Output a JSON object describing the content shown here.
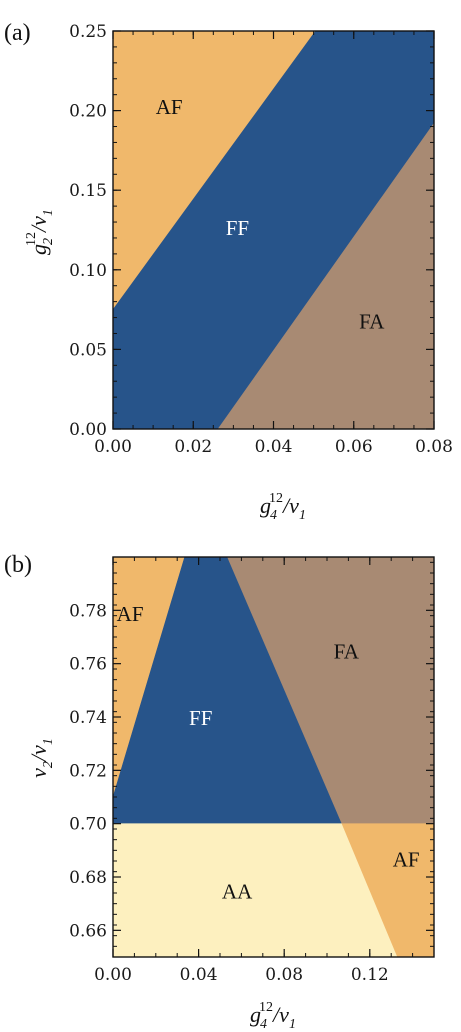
{
  "chart_data": [
    {
      "type": "phase-diagram",
      "panel_label": "(a)",
      "xlabel": "g_4^{12}/v_1",
      "ylabel": "g_2^{12}/v_1",
      "xlim": [
        0,
        0.08
      ],
      "ylim": [
        0,
        0.25
      ],
      "xticks": [
        0.0,
        0.02,
        0.04,
        0.06,
        0.08
      ],
      "xtick_labels": [
        "0.00",
        "0.02",
        "0.04",
        "0.06",
        "0.08"
      ],
      "yticks": [
        0.0,
        0.05,
        0.1,
        0.15,
        0.2,
        0.25
      ],
      "ytick_labels": [
        "0.00",
        "0.05",
        "0.10",
        "0.15",
        "0.20",
        "0.25"
      ],
      "regions": [
        {
          "label": "AF",
          "color": "#f0b86b",
          "label_at": [
            0.014,
            0.198
          ],
          "label_color": "#111111",
          "polygon": [
            [
              0,
              0.075
            ],
            [
              0.0505,
              0.25
            ],
            [
              0,
              0.25
            ]
          ]
        },
        {
          "label": "FF",
          "color": "#27548a",
          "label_at": [
            0.031,
            0.122
          ],
          "label_color": "#ffffff",
          "polygon": [
            [
              0,
              0
            ],
            [
              0.0262,
              0
            ],
            [
              0.08,
              0.192
            ],
            [
              0.08,
              0.25
            ],
            [
              0.0505,
              0.25
            ],
            [
              0,
              0.075
            ]
          ]
        },
        {
          "label": "FA",
          "color": "#a88a73",
          "label_at": [
            0.0645,
            0.063
          ],
          "label_color": "#111111",
          "polygon": [
            [
              0.0262,
              0
            ],
            [
              0.08,
              0
            ],
            [
              0.08,
              0.192
            ]
          ]
        }
      ]
    },
    {
      "type": "phase-diagram",
      "panel_label": "(b)",
      "xlabel": "g_4^{12}/v_1",
      "ylabel": "v_2/v_1",
      "xlim": [
        0,
        0.15
      ],
      "ylim": [
        0.65,
        0.8
      ],
      "xticks": [
        0.0,
        0.04,
        0.08,
        0.12
      ],
      "xtick_labels": [
        "0.00",
        "0.04",
        "0.08",
        "0.12"
      ],
      "yticks": [
        0.66,
        0.68,
        0.7,
        0.72,
        0.74,
        0.76,
        0.78
      ],
      "ytick_labels": [
        "0.66",
        "0.68",
        "0.70",
        "0.72",
        "0.74",
        "0.76",
        "0.78"
      ],
      "regions": [
        {
          "label": "AF",
          "color": "#f0b86b",
          "label_at": [
            0.008,
            0.776
          ],
          "label_color": "#111111",
          "polygon": [
            [
              0,
              0.71
            ],
            [
              0.0335,
              0.8
            ],
            [
              0,
              0.8
            ]
          ]
        },
        {
          "label": "FF",
          "color": "#27548a",
          "label_at": [
            0.041,
            0.737
          ],
          "label_color": "#ffffff",
          "polygon": [
            [
              0,
              0.7
            ],
            [
              0.107,
              0.7
            ],
            [
              0.0535,
              0.8
            ],
            [
              0.0335,
              0.8
            ],
            [
              0,
              0.71
            ]
          ]
        },
        {
          "label": "FA",
          "color": "#a88a73",
          "label_at": [
            0.109,
            0.762
          ],
          "label_color": "#111111",
          "polygon": [
            [
              0.0535,
              0.8
            ],
            [
              0.15,
              0.8
            ],
            [
              0.15,
              0.7
            ],
            [
              0.107,
              0.7
            ]
          ]
        },
        {
          "label": "AA",
          "color": "#fdf0bf",
          "label_at": [
            0.058,
            0.672
          ],
          "label_color": "#111111",
          "polygon": [
            [
              0,
              0.65
            ],
            [
              0.133,
              0.65
            ],
            [
              0.107,
              0.7
            ],
            [
              0,
              0.7
            ]
          ]
        },
        {
          "label": "AF",
          "color": "#f0b86b",
          "label_at": [
            0.137,
            0.684
          ],
          "label_color": "#111111",
          "polygon": [
            [
              0.107,
              0.7
            ],
            [
              0.15,
              0.7
            ],
            [
              0.15,
              0.65
            ],
            [
              0.133,
              0.65
            ]
          ]
        }
      ]
    }
  ]
}
